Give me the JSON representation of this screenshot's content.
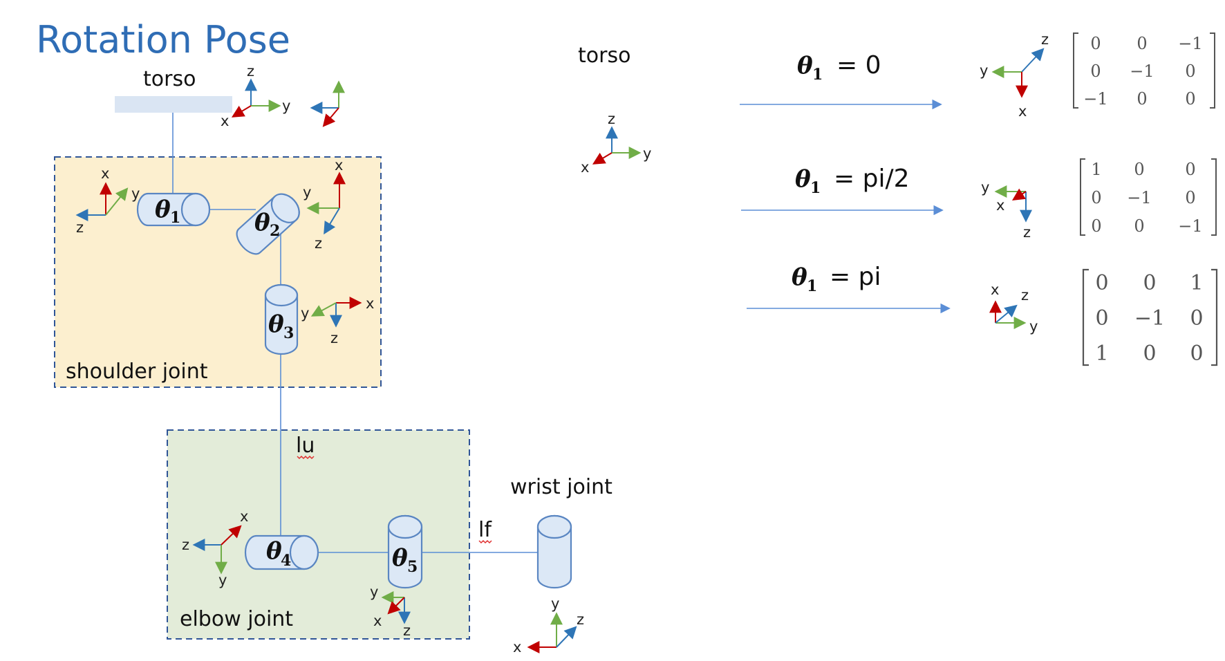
{
  "title": "Rotation Pose",
  "labels": {
    "torso_left": "torso",
    "torso_right": "torso",
    "shoulder": "shoulder joint",
    "elbow": "elbow joint",
    "wrist": "wrist joint",
    "lu": "lu",
    "lf": "lf"
  },
  "joints": [
    {
      "theta": "θ",
      "sub": "1"
    },
    {
      "theta": "θ",
      "sub": "2"
    },
    {
      "theta": "θ",
      "sub": "3"
    },
    {
      "theta": "θ",
      "sub": "4"
    },
    {
      "theta": "θ",
      "sub": "5"
    }
  ],
  "axis_colors": {
    "x": "#c00000",
    "y": "#70ad47",
    "z": "#2e75b6",
    "link": "#5b8ed6",
    "title": "#2f6db5"
  },
  "frames": {
    "torso_frame": {
      "x": "x",
      "y": "y",
      "z": "z"
    },
    "shoulder_left_frame": {
      "x": "x",
      "y": "y",
      "z": "z"
    },
    "shoulder_right_frame": {
      "x": "x",
      "y": "y",
      "z": "z"
    },
    "theta3_frame": {
      "x": "x",
      "y": "y",
      "z": "z"
    },
    "elbow_left_frame": {
      "x": "x",
      "y": "y",
      "z": "z"
    },
    "elbow_theta5_frame": {
      "x": "x",
      "y": "y",
      "z": "z"
    },
    "wrist_frame": {
      "x": "x",
      "y": "y",
      "z": "z"
    },
    "right_torso_frame": {
      "x": "x",
      "y": "y",
      "z": "z"
    },
    "case0_frame": {
      "x": "x",
      "y": "y",
      "z": "z"
    },
    "case1_frame": {
      "x": "x",
      "y": "y",
      "z": "z"
    },
    "case2_frame": {
      "x": "x",
      "y": "y",
      "z": "z"
    }
  },
  "cases": [
    {
      "theta": "θ",
      "sub": "1",
      "eq": "= 0",
      "matrix": [
        [
          "0",
          "0",
          "−1"
        ],
        [
          "0",
          "−1",
          "0"
        ],
        [
          "−1",
          "0",
          "0"
        ]
      ]
    },
    {
      "theta": "θ",
      "sub": "1",
      "eq": "= pi/2",
      "matrix": [
        [
          "1",
          "0",
          "0"
        ],
        [
          "0",
          "−1",
          "0"
        ],
        [
          "0",
          "0",
          "−1"
        ]
      ]
    },
    {
      "theta": "θ",
      "sub": "1",
      "eq": "= pi",
      "matrix": [
        [
          "0",
          "0",
          "1"
        ],
        [
          "0",
          "−1",
          "0"
        ],
        [
          "1",
          "0",
          "0"
        ]
      ]
    }
  ]
}
